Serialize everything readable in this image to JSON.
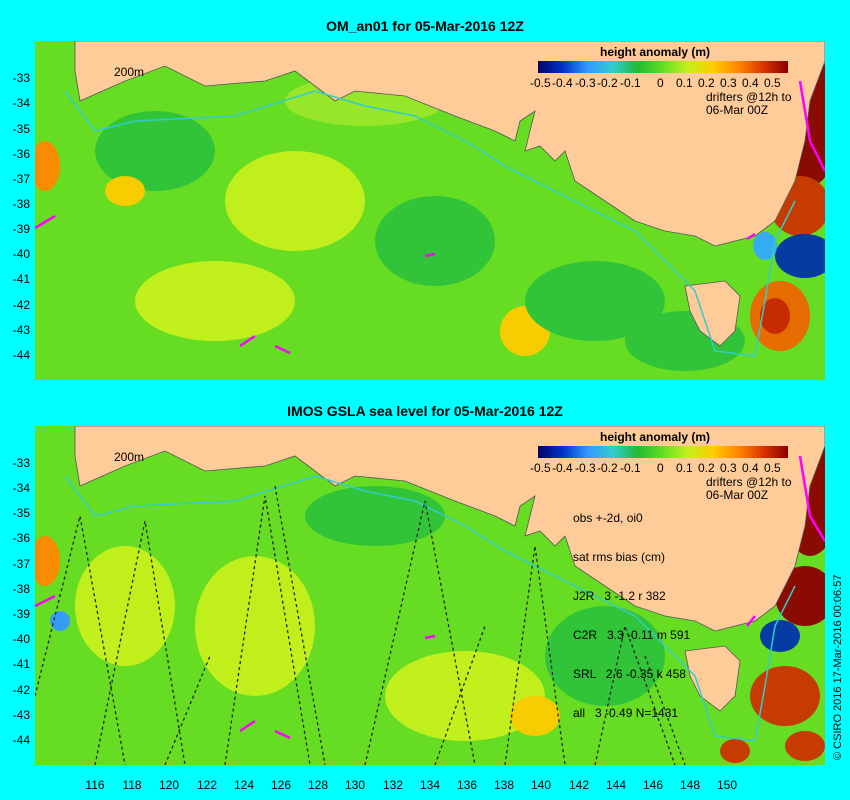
{
  "top_panel": {
    "title": "OM_an01 for 05-Mar-2016 12Z",
    "isobath_label": "200m",
    "colorbar": {
      "title": "height anomaly (m)",
      "ticks": [
        "-0.5",
        "-0.4",
        "-0.3",
        "-0.2",
        "-0.1",
        "0",
        "0.1",
        "0.2",
        "0.3",
        "0.4",
        "0.5"
      ]
    },
    "drifters_note": [
      "drifters @12h to",
      "06-Mar 00Z"
    ]
  },
  "bottom_panel": {
    "title": "IMOS GSLA sea level  for 05-Mar-2016 12Z",
    "isobath_label": "200m",
    "colorbar": {
      "title": "height anomaly (m)",
      "ticks": [
        "-0.5",
        "-0.4",
        "-0.3",
        "-0.2",
        "-0.1",
        "0",
        "0.1",
        "0.2",
        "0.3",
        "0.4",
        "0.5"
      ]
    },
    "drifters_note": [
      "drifters @12h to",
      "06-Mar 00Z"
    ],
    "stats": [
      "obs +-2d, oi0",
      "sat rms bias (cm)",
      "J2R   3 -1.2 r 382",
      "C2R   3.3 -0.11 m 591",
      "SRL   2.6 -0.35 k 458",
      "all   3 -0.49 N=1431"
    ]
  },
  "axes": {
    "y_ticks": [
      "-33",
      "-34",
      "-35",
      "-36",
      "-37",
      "-38",
      "-39",
      "-40",
      "-41",
      "-42",
      "-43",
      "-44"
    ],
    "x_ticks": [
      "116",
      "118",
      "120",
      "122",
      "124",
      "126",
      "128",
      "130",
      "132",
      "134",
      "136",
      "138",
      "140",
      "142",
      "144",
      "146",
      "148",
      "150"
    ]
  },
  "copyright": "© CSIRO 2016  17-Mar-2016 00:06:57",
  "colors": {
    "background": "#00ffff",
    "land": "#ffcc99",
    "ocean_mid": "#66dd22",
    "drifter": "#ff00ff",
    "isobath": "#33cccc"
  }
}
